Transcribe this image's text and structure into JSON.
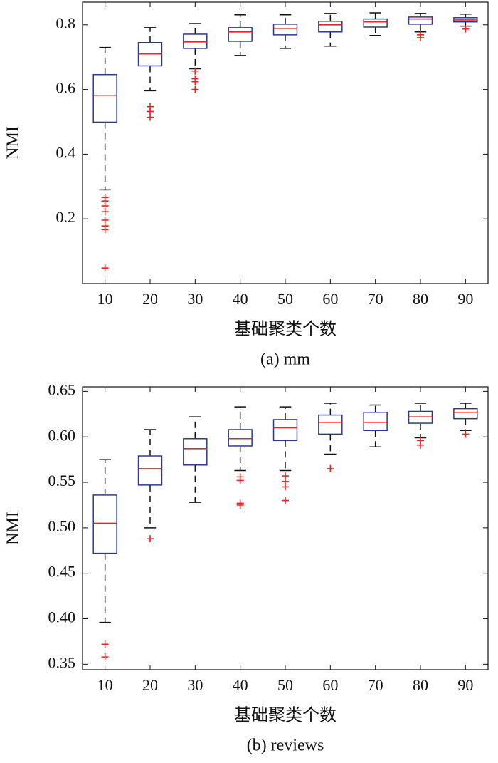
{
  "chart_data": [
    {
      "type": "box",
      "caption": "(a) mm",
      "x_label": "基础聚类个数",
      "y_label": "NMI",
      "categories": [
        "10",
        "20",
        "30",
        "40",
        "50",
        "60",
        "70",
        "80",
        "90"
      ],
      "box_color": "#2b3a8f",
      "median_color": "#e8251f",
      "whisker_color": "#111111",
      "outlier_color": "#e8251f",
      "ylim": [
        0,
        0.87
      ],
      "yticks": [
        0.2,
        0.4,
        0.6,
        0.8
      ],
      "boxes": [
        {
          "whisker_low": 0.29,
          "q1": 0.499,
          "median": 0.582,
          "q3": 0.646,
          "whisker_high": 0.73,
          "outliers": [
            0.266,
            0.255,
            0.24,
            0.222,
            0.196,
            0.178,
            0.167,
            0.048
          ]
        },
        {
          "whisker_low": 0.596,
          "q1": 0.673,
          "median": 0.71,
          "q3": 0.745,
          "whisker_high": 0.791,
          "outliers": [
            0.547,
            0.532,
            0.514
          ]
        },
        {
          "whisker_low": 0.664,
          "q1": 0.727,
          "median": 0.747,
          "q3": 0.771,
          "whisker_high": 0.804,
          "outliers": [
            0.657,
            0.633,
            0.624,
            0.6
          ]
        },
        {
          "whisker_low": 0.705,
          "q1": 0.749,
          "median": 0.778,
          "q3": 0.791,
          "whisker_high": 0.831,
          "outliers": []
        },
        {
          "whisker_low": 0.727,
          "q1": 0.769,
          "median": 0.789,
          "q3": 0.802,
          "whisker_high": 0.831,
          "outliers": []
        },
        {
          "whisker_low": 0.734,
          "q1": 0.778,
          "median": 0.8,
          "q3": 0.811,
          "whisker_high": 0.835,
          "outliers": []
        },
        {
          "whisker_low": 0.767,
          "q1": 0.793,
          "median": 0.809,
          "q3": 0.818,
          "whisker_high": 0.837,
          "outliers": []
        },
        {
          "whisker_low": 0.778,
          "q1": 0.802,
          "median": 0.818,
          "q3": 0.824,
          "whisker_high": 0.835,
          "outliers": [
            0.769,
            0.76
          ]
        },
        {
          "whisker_low": 0.796,
          "q1": 0.809,
          "median": 0.815,
          "q3": 0.822,
          "whisker_high": 0.833,
          "outliers": [
            0.787
          ]
        }
      ]
    },
    {
      "type": "box",
      "caption": "(b) reviews",
      "x_label": "基础聚类个数",
      "y_label": "NMI",
      "categories": [
        "10",
        "20",
        "30",
        "40",
        "50",
        "60",
        "70",
        "80",
        "90"
      ],
      "box_color": "#2b3a8f",
      "median_color": "#e8251f",
      "whisker_color": "#111111",
      "outlier_color": "#e8251f",
      "ylim": [
        0.344,
        0.655
      ],
      "yticks": [
        0.35,
        {
          "value": 0.4,
          "label": "0.40"
        },
        0.45,
        {
          "value": 0.5,
          "label": "0.50"
        },
        0.55,
        {
          "value": 0.6,
          "label": "0.60"
        },
        0.65
      ],
      "boxes": [
        {
          "whisker_low": 0.396,
          "q1": 0.472,
          "median": 0.505,
          "q3": 0.536,
          "whisker_high": 0.575,
          "outliers": [
            0.372,
            0.358
          ]
        },
        {
          "whisker_low": 0.5,
          "q1": 0.547,
          "median": 0.565,
          "q3": 0.579,
          "whisker_high": 0.608,
          "outliers": [
            0.488
          ]
        },
        {
          "whisker_low": 0.528,
          "q1": 0.569,
          "median": 0.587,
          "q3": 0.598,
          "whisker_high": 0.622,
          "outliers": []
        },
        {
          "whisker_low": 0.563,
          "q1": 0.59,
          "median": 0.598,
          "q3": 0.608,
          "whisker_high": 0.633,
          "outliers": [
            0.556,
            0.552,
            0.527,
            0.525
          ]
        },
        {
          "whisker_low": 0.563,
          "q1": 0.596,
          "median": 0.61,
          "q3": 0.619,
          "whisker_high": 0.633,
          "outliers": [
            0.557,
            0.551,
            0.545,
            0.53
          ]
        },
        {
          "whisker_low": 0.581,
          "q1": 0.603,
          "median": 0.616,
          "q3": 0.624,
          "whisker_high": 0.637,
          "outliers": [
            0.565
          ]
        },
        {
          "whisker_low": 0.589,
          "q1": 0.607,
          "median": 0.616,
          "q3": 0.627,
          "whisker_high": 0.635,
          "outliers": []
        },
        {
          "whisker_low": 0.599,
          "q1": 0.615,
          "median": 0.622,
          "q3": 0.628,
          "whisker_high": 0.637,
          "outliers": [
            0.596,
            0.591
          ]
        },
        {
          "whisker_low": 0.607,
          "q1": 0.62,
          "median": 0.627,
          "q3": 0.631,
          "whisker_high": 0.637,
          "outliers": [
            0.603
          ]
        }
      ]
    }
  ]
}
